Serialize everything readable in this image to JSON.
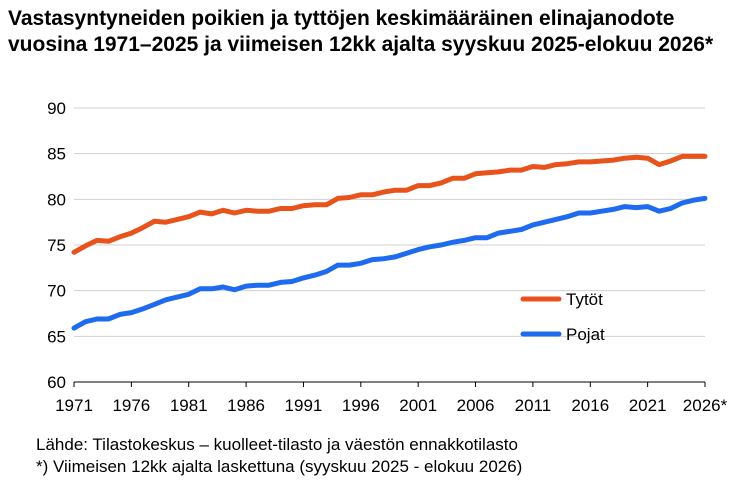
{
  "chart_data": {
    "type": "line",
    "title": "Vastasyntyneiden poikien ja tyttöjen keskimääräinen elinajanodote vuosina 1971–2025 ja viimeisen 12kk ajalta syyskuu 2025-elokuu 2026*",
    "xlabel": "",
    "ylabel": "",
    "ylim": [
      60,
      90
    ],
    "y_ticks": [
      "60",
      "65",
      "70",
      "75",
      "80",
      "85",
      "90"
    ],
    "x_ticks": [
      "1971",
      "1976",
      "1981",
      "1986",
      "1991",
      "1996",
      "2001",
      "2006",
      "2011",
      "2016",
      "2021",
      "2026*"
    ],
    "grid": "horizontal",
    "legend_position": "inside-right",
    "x": [
      "1971",
      "1972",
      "1973",
      "1974",
      "1975",
      "1976",
      "1977",
      "1978",
      "1979",
      "1980",
      "1981",
      "1982",
      "1983",
      "1984",
      "1985",
      "1986",
      "1987",
      "1988",
      "1989",
      "1990",
      "1991",
      "1992",
      "1993",
      "1994",
      "1995",
      "1996",
      "1997",
      "1998",
      "1999",
      "2000",
      "2001",
      "2002",
      "2003",
      "2004",
      "2005",
      "2006",
      "2007",
      "2008",
      "2009",
      "2010",
      "2011",
      "2012",
      "2013",
      "2014",
      "2015",
      "2016",
      "2017",
      "2018",
      "2019",
      "2020",
      "2021",
      "2022",
      "2023",
      "2024",
      "2025",
      "2026*"
    ],
    "series": [
      {
        "name": "Tytöt",
        "color": "#E8531C",
        "values": [
          74.2,
          74.9,
          75.5,
          75.4,
          75.9,
          76.3,
          76.9,
          77.6,
          77.5,
          77.8,
          78.1,
          78.6,
          78.4,
          78.8,
          78.5,
          78.8,
          78.7,
          78.7,
          79.0,
          79.0,
          79.3,
          79.4,
          79.4,
          80.1,
          80.2,
          80.5,
          80.5,
          80.8,
          81.0,
          81.0,
          81.5,
          81.5,
          81.8,
          82.3,
          82.3,
          82.8,
          82.9,
          83.0,
          83.2,
          83.2,
          83.6,
          83.5,
          83.8,
          83.9,
          84.1,
          84.1,
          84.2,
          84.3,
          84.5,
          84.6,
          84.5,
          83.8,
          84.2,
          84.7,
          84.7,
          84.7
        ]
      },
      {
        "name": "Pojat",
        "color": "#1E6BF0",
        "values": [
          65.9,
          66.6,
          66.9,
          66.9,
          67.4,
          67.6,
          68.0,
          68.5,
          69.0,
          69.3,
          69.6,
          70.2,
          70.2,
          70.4,
          70.1,
          70.5,
          70.6,
          70.6,
          70.9,
          71.0,
          71.4,
          71.7,
          72.1,
          72.8,
          72.8,
          73.0,
          73.4,
          73.5,
          73.7,
          74.1,
          74.5,
          74.8,
          75.0,
          75.3,
          75.5,
          75.8,
          75.8,
          76.3,
          76.5,
          76.7,
          77.2,
          77.5,
          77.8,
          78.1,
          78.5,
          78.5,
          78.7,
          78.9,
          79.2,
          79.1,
          79.2,
          78.7,
          79.0,
          79.6,
          79.9,
          80.1
        ]
      }
    ]
  },
  "footer": {
    "source": "Lähde: Tilastokeskus – kuolleet-tilasto ja väestön ennakkotilasto",
    "note": "*) Viimeisen 12kk ajalta laskettuna (syyskuu 2025 - elokuu 2026)"
  }
}
